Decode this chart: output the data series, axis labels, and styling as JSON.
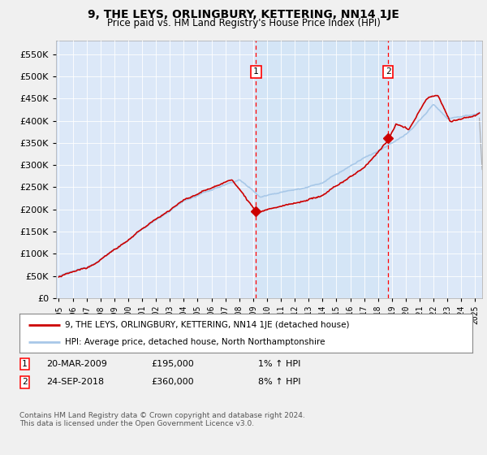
{
  "title": "9, THE LEYS, ORLINGBURY, KETTERING, NN14 1JE",
  "subtitle": "Price paid vs. HM Land Registry's House Price Index (HPI)",
  "ylabel_ticks": [
    "£0",
    "£50K",
    "£100K",
    "£150K",
    "£200K",
    "£250K",
    "£300K",
    "£350K",
    "£400K",
    "£450K",
    "£500K",
    "£550K"
  ],
  "ytick_values": [
    0,
    50000,
    100000,
    150000,
    200000,
    250000,
    300000,
    350000,
    400000,
    450000,
    500000,
    550000
  ],
  "ylim": [
    0,
    580000
  ],
  "xlim_start": 1994.8,
  "xlim_end": 2025.5,
  "hpi_color": "#a8c8e8",
  "hpi_fill_color": "#d0e4f5",
  "price_color": "#cc0000",
  "bg_color": "#f0f0f0",
  "plot_bg": "#dce8f8",
  "transaction1": {
    "date_label": "20-MAR-2009",
    "price": 195000,
    "hpi_pct": "1%",
    "marker_x": 2009.21,
    "label": "1"
  },
  "transaction2": {
    "date_label": "24-SEP-2018",
    "price": 360000,
    "hpi_pct": "8%",
    "marker_x": 2018.73,
    "label": "2"
  },
  "legend_line1": "9, THE LEYS, ORLINGBURY, KETTERING, NN14 1JE (detached house)",
  "legend_line2": "HPI: Average price, detached house, North Northamptonshire",
  "footer": "Contains HM Land Registry data © Crown copyright and database right 2024.\nThis data is licensed under the Open Government Licence v3.0.",
  "xtick_years": [
    1995,
    1996,
    1997,
    1998,
    1999,
    2000,
    2001,
    2002,
    2003,
    2004,
    2005,
    2006,
    2007,
    2008,
    2009,
    2010,
    2011,
    2012,
    2013,
    2014,
    2015,
    2016,
    2017,
    2018,
    2019,
    2020,
    2021,
    2022,
    2023,
    2024,
    2025
  ]
}
